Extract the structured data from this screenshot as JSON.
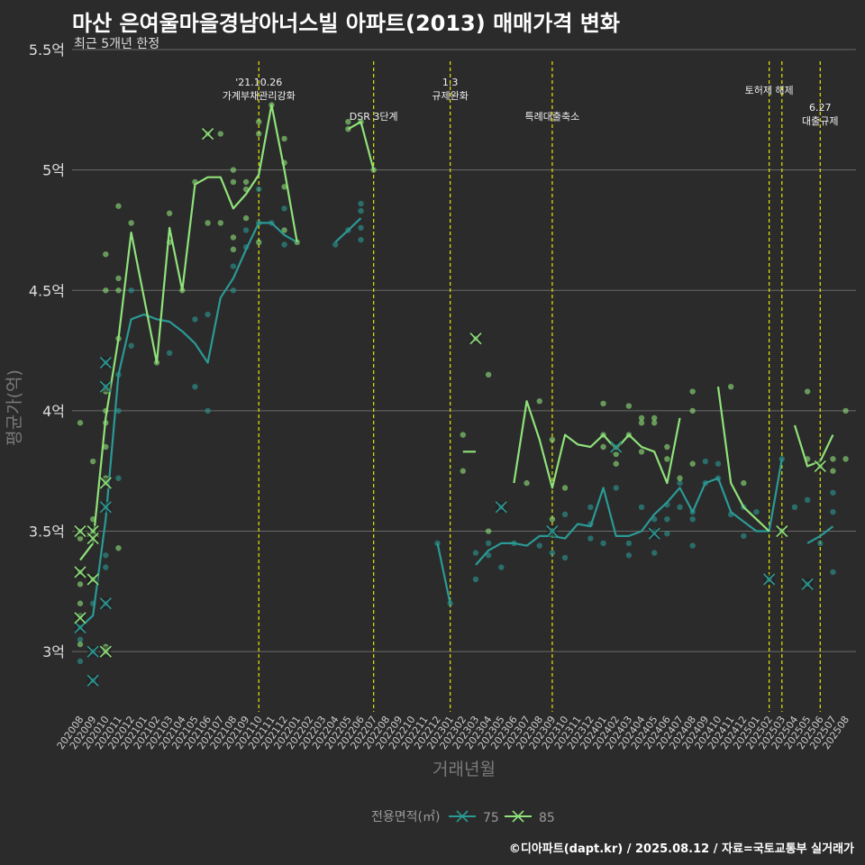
{
  "header": {
    "title": "마산 은여울마을경남아너스빌 아파트(2013) 매매가격 변화",
    "subtitle": "최근 5개년 한정"
  },
  "caption": "©디아파트(dapt.kr) / 2025.08.12 / 자료=국토교통부 실거래가",
  "colors": {
    "s75": "#2a9a95",
    "s85": "#8fe27a",
    "event": "#e6e600",
    "grid": "#6a6a6a",
    "background": "#2b2b2b"
  },
  "chart_data": {
    "type": "line",
    "xlabel": "거래년월",
    "ylabel": "평균가(억)",
    "ylim": [
      2.75,
      5.5
    ],
    "yticks": [
      3,
      3.5,
      4,
      4.5,
      5,
      5.5
    ],
    "ytick_labels": [
      "3억",
      "3.5억",
      "4억",
      "4.5억",
      "5억",
      "5.5억"
    ],
    "categories": [
      "202008",
      "202009",
      "202010",
      "202011",
      "202012",
      "202101",
      "202102",
      "202103",
      "202104",
      "202105",
      "202106",
      "202107",
      "202108",
      "202109",
      "202110",
      "202111",
      "202112",
      "202201",
      "202202",
      "202203",
      "202204",
      "202205",
      "202206",
      "202207",
      "202208",
      "202209",
      "202210",
      "202211",
      "202212",
      "202301",
      "202302",
      "202303",
      "202304",
      "202305",
      "202306",
      "202307",
      "202308",
      "202309",
      "202310",
      "202311",
      "202312",
      "202401",
      "202402",
      "202403",
      "202404",
      "202405",
      "202406",
      "202407",
      "202408",
      "202409",
      "202410",
      "202411",
      "202412",
      "202501",
      "202502",
      "202503",
      "202504",
      "202505",
      "202506",
      "202507",
      "202508"
    ],
    "legend": {
      "title": "전용면적(㎡)",
      "position": "bottom"
    },
    "series": [
      {
        "name": "75",
        "color": "#2a9a95",
        "values": [
          3.1,
          3.15,
          3.55,
          4.15,
          4.38,
          4.4,
          4.38,
          4.37,
          4.33,
          4.28,
          4.2,
          4.47,
          4.55,
          4.67,
          4.78,
          4.78,
          4.73,
          4.7,
          null,
          null,
          4.7,
          4.75,
          4.8,
          null,
          null,
          null,
          null,
          null,
          3.45,
          3.2,
          null,
          3.36,
          3.42,
          3.45,
          3.45,
          3.44,
          3.48,
          3.48,
          3.47,
          3.53,
          3.52,
          3.68,
          3.48,
          3.48,
          3.5,
          3.57,
          3.62,
          3.68,
          3.58,
          3.7,
          3.72,
          3.58,
          3.54,
          3.5,
          3.5,
          3.8,
          null,
          3.45,
          3.48,
          3.52,
          null
        ]
      },
      {
        "name": "85",
        "color": "#8fe27a",
        "values": [
          3.38,
          3.45,
          3.97,
          4.3,
          4.74,
          4.47,
          4.2,
          4.76,
          4.5,
          4.94,
          4.97,
          4.97,
          4.84,
          4.9,
          4.98,
          5.27,
          5.0,
          4.7,
          null,
          null,
          null,
          5.17,
          5.2,
          5.0,
          null,
          null,
          null,
          null,
          null,
          null,
          3.83,
          3.83,
          null,
          null,
          3.7,
          4.04,
          3.88,
          3.68,
          3.9,
          3.86,
          3.85,
          3.9,
          3.84,
          3.9,
          3.85,
          3.83,
          3.7,
          3.97,
          null,
          null,
          4.1,
          3.7,
          3.6,
          3.55,
          3.5,
          null,
          3.94,
          3.77,
          3.79,
          3.9,
          null
        ]
      }
    ],
    "scatter_75": [
      [
        "202008",
        3.1
      ],
      [
        "202008",
        3.05
      ],
      [
        "202008",
        2.96
      ],
      [
        "202008",
        3.15
      ],
      [
        "202009",
        3.0
      ],
      [
        "202009",
        2.88
      ],
      [
        "202009",
        3.2
      ],
      [
        "202010",
        3.2
      ],
      [
        "202010",
        3.6
      ],
      [
        "202010",
        4.2
      ],
      [
        "202010",
        4.1
      ],
      [
        "202010",
        3.35
      ],
      [
        "202010",
        3.4
      ],
      [
        "202011",
        3.72
      ],
      [
        "202011",
        4.0
      ],
      [
        "202011",
        4.15
      ],
      [
        "202012",
        4.27
      ],
      [
        "202012",
        4.5
      ],
      [
        "202103",
        4.24
      ],
      [
        "202105",
        4.1
      ],
      [
        "202105",
        4.38
      ],
      [
        "202106",
        4.0
      ],
      [
        "202106",
        4.4
      ],
      [
        "202108",
        4.5
      ],
      [
        "202108",
        4.6
      ],
      [
        "202109",
        4.68
      ],
      [
        "202109",
        4.75
      ],
      [
        "202110",
        4.78
      ],
      [
        "202110",
        4.92
      ],
      [
        "202111",
        4.78
      ],
      [
        "202112",
        4.69
      ],
      [
        "202112",
        4.84
      ],
      [
        "202204",
        4.69
      ],
      [
        "202205",
        4.75
      ],
      [
        "202206",
        4.71
      ],
      [
        "202206",
        4.76
      ],
      [
        "202206",
        4.83
      ],
      [
        "202206",
        4.86
      ],
      [
        "202212",
        3.45
      ],
      [
        "202301",
        3.2
      ],
      [
        "202303",
        3.3
      ],
      [
        "202303",
        3.41
      ],
      [
        "202304",
        3.45
      ],
      [
        "202304",
        3.4
      ],
      [
        "202305",
        3.35
      ],
      [
        "202305",
        3.6
      ],
      [
        "202306",
        3.45
      ],
      [
        "202308",
        3.44
      ],
      [
        "202309",
        3.5
      ],
      [
        "202309",
        3.41
      ],
      [
        "202310",
        3.39
      ],
      [
        "202310",
        3.57
      ],
      [
        "202312",
        3.47
      ],
      [
        "202312",
        3.53
      ],
      [
        "202312",
        3.6
      ],
      [
        "202401",
        3.45
      ],
      [
        "202402",
        3.68
      ],
      [
        "202402",
        3.85
      ],
      [
        "202403",
        3.4
      ],
      [
        "202403",
        3.45
      ],
      [
        "202404",
        3.6
      ],
      [
        "202405",
        3.41
      ],
      [
        "202405",
        3.5
      ],
      [
        "202405",
        3.55
      ],
      [
        "202406",
        3.55
      ],
      [
        "202406",
        3.61
      ],
      [
        "202406",
        3.49
      ],
      [
        "202407",
        3.6
      ],
      [
        "202407",
        3.7
      ],
      [
        "202408",
        3.44
      ],
      [
        "202408",
        3.55
      ],
      [
        "202408",
        3.58
      ],
      [
        "202409",
        3.7
      ],
      [
        "202409",
        3.79
      ],
      [
        "202410",
        3.78
      ],
      [
        "202410",
        3.72
      ],
      [
        "202411",
        3.57
      ],
      [
        "202412",
        3.48
      ],
      [
        "202412",
        3.6
      ],
      [
        "202501",
        3.58
      ],
      [
        "202502",
        3.3
      ],
      [
        "202503",
        3.8
      ],
      [
        "202504",
        3.6
      ],
      [
        "202505",
        3.28
      ],
      [
        "202505",
        3.63
      ],
      [
        "202506",
        3.45
      ],
      [
        "202507",
        3.58
      ],
      [
        "202507",
        3.66
      ],
      [
        "202507",
        3.33
      ]
    ],
    "scatter_85": [
      [
        "202008",
        3.95
      ],
      [
        "202008",
        3.5
      ],
      [
        "202008",
        3.47
      ],
      [
        "202008",
        3.33
      ],
      [
        "202008",
        3.15
      ],
      [
        "202008",
        3.28
      ],
      [
        "202008",
        3.2
      ],
      [
        "202008",
        3.03
      ],
      [
        "202009",
        3.3
      ],
      [
        "202009",
        3.48
      ],
      [
        "202009",
        3.55
      ],
      [
        "202009",
        3.79
      ],
      [
        "202009",
        3.5
      ],
      [
        "202010",
        3.7
      ],
      [
        "202010",
        3.72
      ],
      [
        "202010",
        3.85
      ],
      [
        "202010",
        3.95
      ],
      [
        "202010",
        4.0
      ],
      [
        "202010",
        4.08
      ],
      [
        "202010",
        4.5
      ],
      [
        "202010",
        4.65
      ],
      [
        "202010",
        3.02
      ],
      [
        "202010",
        3.0
      ],
      [
        "202011",
        4.55
      ],
      [
        "202011",
        4.5
      ],
      [
        "202011",
        4.85
      ],
      [
        "202011",
        4.3
      ],
      [
        "202011",
        3.43
      ],
      [
        "202012",
        4.78
      ],
      [
        "202102",
        4.2
      ],
      [
        "202103",
        4.82
      ],
      [
        "202103",
        4.7
      ],
      [
        "202104",
        4.5
      ],
      [
        "202105",
        4.95
      ],
      [
        "202106",
        5.15
      ],
      [
        "202106",
        4.78
      ],
      [
        "202107",
        5.15
      ],
      [
        "202107",
        4.78
      ],
      [
        "202108",
        5.0
      ],
      [
        "202108",
        4.95
      ],
      [
        "202108",
        4.72
      ],
      [
        "202108",
        4.67
      ],
      [
        "202109",
        4.95
      ],
      [
        "202109",
        4.92
      ],
      [
        "202109",
        4.8
      ],
      [
        "202110",
        5.2
      ],
      [
        "202110",
        5.15
      ],
      [
        "202110",
        4.7
      ],
      [
        "202111",
        5.27
      ],
      [
        "202112",
        5.13
      ],
      [
        "202112",
        5.03
      ],
      [
        "202112",
        4.93
      ],
      [
        "202112",
        4.75
      ],
      [
        "202201",
        4.7
      ],
      [
        "202205",
        5.2
      ],
      [
        "202205",
        5.17
      ],
      [
        "202206",
        5.2
      ],
      [
        "202207",
        5.0
      ],
      [
        "202302",
        3.9
      ],
      [
        "202302",
        3.75
      ],
      [
        "202304",
        4.15
      ],
      [
        "202304",
        3.5
      ],
      [
        "202303",
        4.3
      ],
      [
        "202307",
        3.7
      ],
      [
        "202308",
        4.04
      ],
      [
        "202309",
        3.88
      ],
      [
        "202309",
        3.55
      ],
      [
        "202310",
        3.68
      ],
      [
        "202401",
        4.03
      ],
      [
        "202401",
        3.9
      ],
      [
        "202401",
        3.85
      ],
      [
        "202402",
        3.82
      ],
      [
        "202402",
        3.78
      ],
      [
        "202403",
        4.02
      ],
      [
        "202403",
        3.9
      ],
      [
        "202404",
        3.97
      ],
      [
        "202404",
        3.95
      ],
      [
        "202404",
        3.83
      ],
      [
        "202405",
        3.97
      ],
      [
        "202405",
        3.95
      ],
      [
        "202406",
        3.85
      ],
      [
        "202406",
        3.8
      ],
      [
        "202407",
        3.72
      ],
      [
        "202408",
        4.08
      ],
      [
        "202408",
        4.0
      ],
      [
        "202408",
        3.78
      ],
      [
        "202411",
        4.1
      ],
      [
        "202412",
        3.7
      ],
      [
        "202503",
        3.5
      ],
      [
        "202505",
        3.8
      ],
      [
        "202505",
        4.08
      ],
      [
        "202506",
        3.77
      ],
      [
        "202507",
        3.8
      ],
      [
        "202507",
        3.75
      ],
      [
        "202508",
        4.0
      ],
      [
        "202508",
        3.8
      ]
    ],
    "cross_75": [
      [
        "202008",
        3.1
      ],
      [
        "202009",
        2.88
      ],
      [
        "202009",
        3.0
      ],
      [
        "202010",
        3.2
      ],
      [
        "202010",
        3.6
      ],
      [
        "202010",
        4.1
      ],
      [
        "202010",
        4.2
      ],
      [
        "202305",
        3.6
      ],
      [
        "202309",
        3.5
      ],
      [
        "202402",
        3.85
      ],
      [
        "202405",
        3.49
      ],
      [
        "202502",
        3.3
      ],
      [
        "202505",
        3.28
      ]
    ],
    "cross_85": [
      [
        "202008",
        3.5
      ],
      [
        "202008",
        3.33
      ],
      [
        "202008",
        3.14
      ],
      [
        "202009",
        3.5
      ],
      [
        "202009",
        3.47
      ],
      [
        "202009",
        3.3
      ],
      [
        "202010",
        3.7
      ],
      [
        "202010",
        3.0
      ],
      [
        "202106",
        5.15
      ],
      [
        "202303",
        4.3
      ],
      [
        "202503",
        3.5
      ],
      [
        "202506",
        3.77
      ]
    ],
    "events": [
      {
        "x": "202110",
        "label": [
          "'21.10.26",
          "가계부채관리강화"
        ],
        "level": 0
      },
      {
        "x": "202207",
        "label": [
          "DSR 3단계"
        ],
        "level": 2
      },
      {
        "x": "202301",
        "label": [
          "1.3",
          "규제완화"
        ],
        "level": 0
      },
      {
        "x": "202309",
        "label": [
          "특례대출축소"
        ],
        "level": 2
      },
      {
        "x": "202502",
        "label": [
          "토허제 해제"
        ],
        "level": 1
      },
      {
        "x": "202503",
        "label": [],
        "level": 1
      },
      {
        "x": "202506",
        "label": [
          "6.27",
          "대출규제"
        ],
        "level": 3
      }
    ]
  }
}
